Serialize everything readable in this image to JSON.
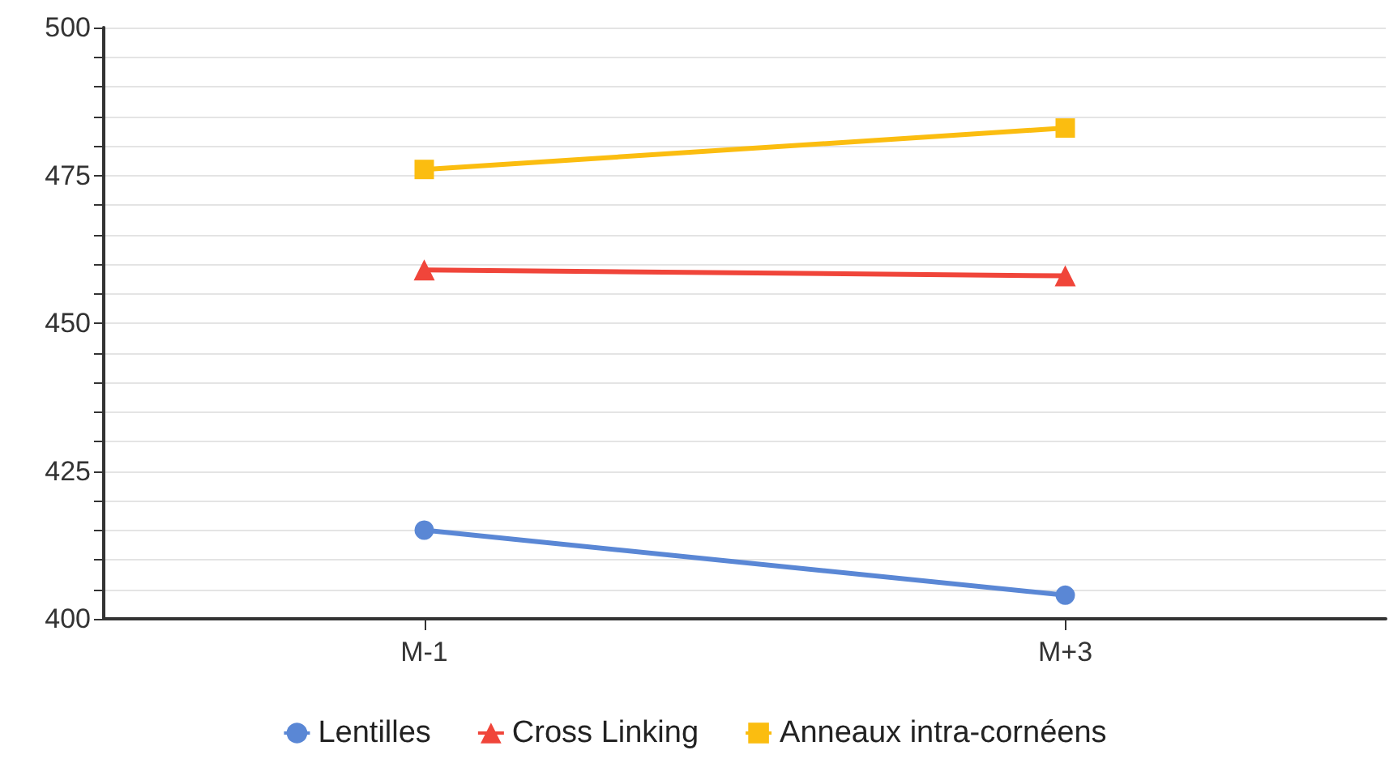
{
  "chart_data": {
    "type": "line",
    "categories": [
      "M-1",
      "M+3"
    ],
    "series": [
      {
        "name": "Lentilles",
        "color": "#5a87d5",
        "marker": "circle",
        "values": [
          415,
          404
        ]
      },
      {
        "name": "Cross Linking",
        "color": "#f0453a",
        "marker": "triangle",
        "values": [
          459,
          458
        ]
      },
      {
        "name": "Anneaux intra-cornéens",
        "color": "#fbbd10",
        "marker": "square",
        "values": [
          476,
          483
        ]
      }
    ],
    "ylim": [
      400,
      500
    ],
    "yticks": [
      400,
      {
        "value": 405,
        "label": null
      },
      {
        "value": 410,
        "label": null
      },
      {
        "value": 415,
        "label": null
      },
      {
        "value": 420,
        "label": null
      },
      425,
      {
        "value": 430,
        "label": null
      },
      {
        "value": 435,
        "label": null
      },
      {
        "value": 440,
        "label": null
      },
      {
        "value": 445,
        "label": null
      },
      450,
      {
        "value": 455,
        "label": null
      },
      {
        "value": 460,
        "label": null
      },
      {
        "value": 465,
        "label": null
      },
      {
        "value": 470,
        "label": null
      },
      475,
      {
        "value": 480,
        "label": null
      },
      {
        "value": 485,
        "label": null
      },
      {
        "value": 490,
        "label": null
      },
      {
        "value": 495,
        "label": null
      },
      500
    ],
    "grid": "y",
    "legend": "bottom",
    "line_style": "solid"
  }
}
